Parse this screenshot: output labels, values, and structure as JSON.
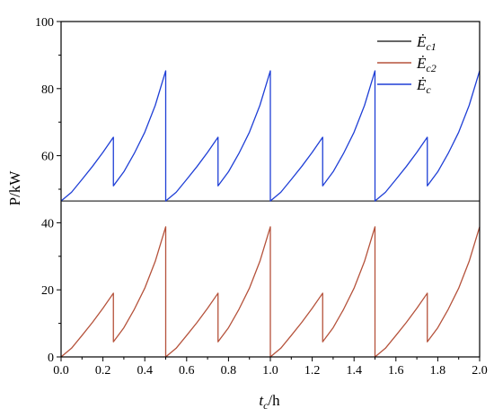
{
  "chart_data": {
    "type": "line",
    "title": "",
    "xlabel": "t_c/h",
    "ylabel": "P/kW",
    "xlim": [
      0,
      2.0
    ],
    "ylim": [
      0,
      100
    ],
    "xticks": [
      0.0,
      0.2,
      0.4,
      0.6,
      0.8,
      1.0,
      1.2,
      1.4,
      1.6,
      1.8,
      2.0
    ],
    "xtick_labels": [
      "0.0",
      "0.2",
      "0.4",
      "0.6",
      "0.8",
      "1.0",
      "1.2",
      "1.4",
      "1.6",
      "1.8",
      "2.0"
    ],
    "yticks": [
      0,
      20,
      40,
      60,
      80,
      100
    ],
    "ytick_labels": [
      "0",
      "20",
      "40",
      "60",
      "80",
      "100"
    ],
    "grid": false,
    "legend_position": "top-right",
    "series": [
      {
        "name": "Ė_c1",
        "color": "#333333",
        "x": [
          0.0,
          2.0
        ],
        "y": [
          46.5,
          46.5
        ]
      },
      {
        "name": "Ė_c2",
        "color": "#b5523b",
        "x": [
          0.0,
          0.05,
          0.1,
          0.15,
          0.2,
          0.25,
          0.25,
          0.3,
          0.35,
          0.4,
          0.45,
          0.5,
          0.5,
          0.55,
          0.6,
          0.65,
          0.7,
          0.75,
          0.75,
          0.8,
          0.85,
          0.9,
          0.95,
          1.0,
          1.0,
          1.05,
          1.1,
          1.15,
          1.2,
          1.25,
          1.25,
          1.3,
          1.35,
          1.4,
          1.45,
          1.5,
          1.5,
          1.55,
          1.6,
          1.65,
          1.7,
          1.75,
          1.75,
          1.8,
          1.85,
          1.9,
          1.95,
          2.0
        ],
        "y": [
          0.0,
          2.6,
          6.4,
          10.3,
          14.5,
          19.0,
          4.5,
          8.7,
          14.2,
          20.5,
          28.5,
          38.8,
          0.0,
          2.6,
          6.4,
          10.3,
          14.5,
          19.0,
          4.5,
          8.7,
          14.2,
          20.5,
          28.5,
          38.8,
          0.0,
          2.6,
          6.4,
          10.3,
          14.5,
          19.0,
          4.5,
          8.7,
          14.2,
          20.5,
          28.5,
          38.8,
          0.0,
          2.6,
          6.4,
          10.3,
          14.5,
          19.0,
          4.5,
          8.7,
          14.2,
          20.5,
          28.5,
          38.8
        ]
      },
      {
        "name": "Ė_c",
        "color": "#1f3fd6",
        "x": [
          0.0,
          0.05,
          0.1,
          0.15,
          0.2,
          0.25,
          0.25,
          0.3,
          0.35,
          0.4,
          0.45,
          0.5,
          0.5,
          0.55,
          0.6,
          0.65,
          0.7,
          0.75,
          0.75,
          0.8,
          0.85,
          0.9,
          0.95,
          1.0,
          1.0,
          1.05,
          1.1,
          1.15,
          1.2,
          1.25,
          1.25,
          1.3,
          1.35,
          1.4,
          1.45,
          1.5,
          1.5,
          1.55,
          1.6,
          1.65,
          1.7,
          1.75,
          1.75,
          1.8,
          1.85,
          1.9,
          1.95,
          2.0
        ],
        "y": [
          46.5,
          49.1,
          52.9,
          56.8,
          61.0,
          65.5,
          51.0,
          55.2,
          60.7,
          67.0,
          75.0,
          85.3,
          46.5,
          49.1,
          52.9,
          56.8,
          61.0,
          65.5,
          51.0,
          55.2,
          60.7,
          67.0,
          75.0,
          85.3,
          46.5,
          49.1,
          52.9,
          56.8,
          61.0,
          65.5,
          51.0,
          55.2,
          60.7,
          67.0,
          75.0,
          85.3,
          46.5,
          49.1,
          52.9,
          56.8,
          61.0,
          65.5,
          51.0,
          55.2,
          60.7,
          67.0,
          75.0,
          85.3
        ]
      }
    ],
    "legend": [
      {
        "base": "Ė",
        "sub": "c1",
        "color": "#333333"
      },
      {
        "base": "Ė",
        "sub": "c2",
        "color": "#b5523b"
      },
      {
        "base": "Ė",
        "sub": "c",
        "color": "#1f3fd6"
      }
    ],
    "x_title": {
      "main": "t",
      "sub": "c",
      "rest": "/h"
    }
  }
}
